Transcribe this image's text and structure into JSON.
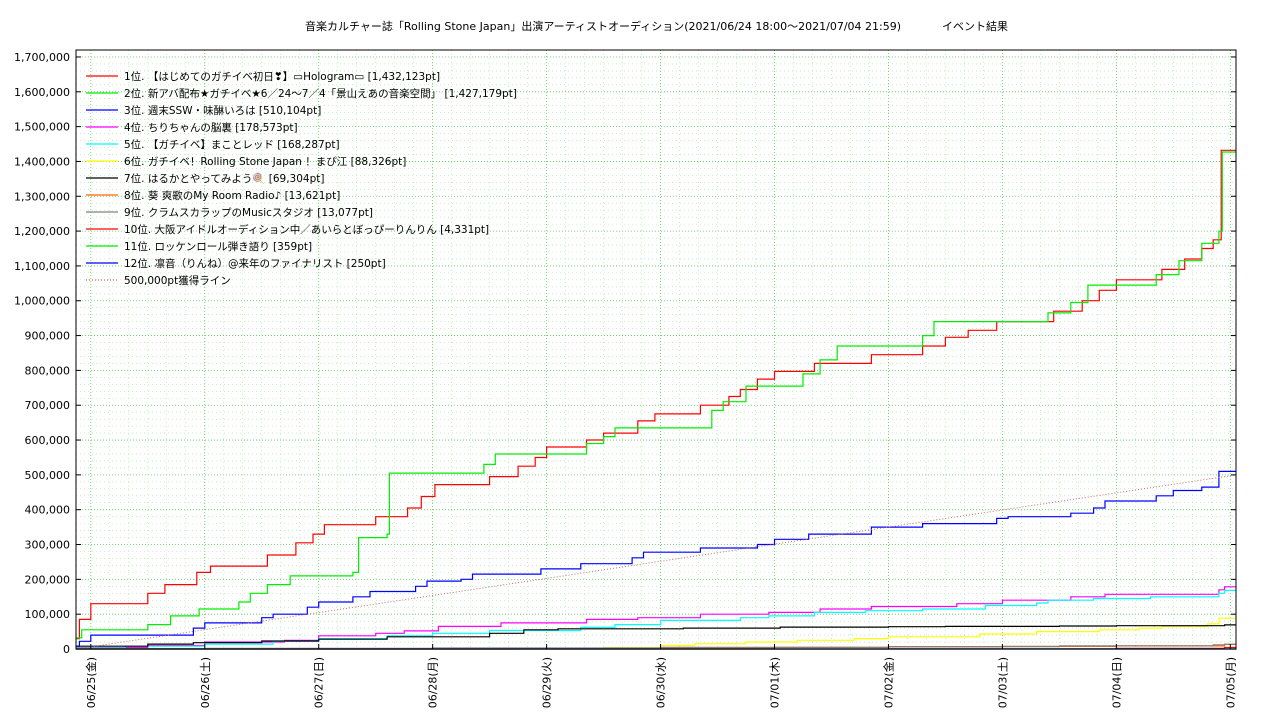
{
  "chart_data": {
    "type": "line",
    "title": "音楽カルチャー誌「Rolling Stone Japan」出演アーティストオーディション(2021/06/24 18:00〜2021/07/04 21:59)",
    "subtitle": "イベント結果",
    "y_ticks": [
      "0",
      "100,000",
      "200,000",
      "300,000",
      "400,000",
      "500,000",
      "600,000",
      "700,000",
      "800,000",
      "900,000",
      "1,000,000",
      "1,100,000",
      "1,200,000",
      "1,300,000",
      "1,400,000",
      "1,500,000",
      "1,600,000",
      "1,700,000"
    ],
    "ylim": [
      0,
      1720000
    ],
    "x_ticks": [
      "06/25(金)",
      "06/26(土)",
      "06/27(日)",
      "06/28(月)",
      "06/29(火)",
      "06/30(水)",
      "07/01(木)",
      "07/02(金)",
      "07/03(土)",
      "07/04(日)",
      "07/05(月)"
    ],
    "xlim": [
      -0.13,
      10.05
    ],
    "grid": true,
    "legend_placement": "top-left",
    "series": [
      {
        "name": "1位. 【はじめてのガチイベ初日❣】▭Hologram▭ [1,432,123pt]",
        "color": "#ff0000",
        "points": [
          [
            -0.13,
            30000
          ],
          [
            -0.1,
            85000
          ],
          [
            0.0,
            130000
          ],
          [
            0.5,
            160000
          ],
          [
            0.65,
            185000
          ],
          [
            0.93,
            220000
          ],
          [
            1.05,
            238000
          ],
          [
            1.55,
            270000
          ],
          [
            1.8,
            305000
          ],
          [
            1.95,
            330000
          ],
          [
            2.05,
            357000
          ],
          [
            2.5,
            380000
          ],
          [
            2.78,
            405000
          ],
          [
            2.9,
            438000
          ],
          [
            3.02,
            472000
          ],
          [
            3.5,
            495000
          ],
          [
            3.75,
            525000
          ],
          [
            3.9,
            550000
          ],
          [
            4.0,
            580000
          ],
          [
            4.35,
            600000
          ],
          [
            4.5,
            620000
          ],
          [
            4.8,
            655000
          ],
          [
            4.95,
            675000
          ],
          [
            5.35,
            700000
          ],
          [
            5.6,
            725000
          ],
          [
            5.7,
            745000
          ],
          [
            5.85,
            775000
          ],
          [
            6.0,
            797000
          ],
          [
            6.35,
            820000
          ],
          [
            6.85,
            845000
          ],
          [
            7.3,
            870000
          ],
          [
            7.5,
            895000
          ],
          [
            7.7,
            915000
          ],
          [
            7.95,
            940000
          ],
          [
            8.45,
            970000
          ],
          [
            8.7,
            1000000
          ],
          [
            8.85,
            1030000
          ],
          [
            9.0,
            1060000
          ],
          [
            9.4,
            1090000
          ],
          [
            9.6,
            1120000
          ],
          [
            9.75,
            1150000
          ],
          [
            9.85,
            1175000
          ],
          [
            9.92,
            1432123
          ],
          [
            10.05,
            1432123
          ]
        ]
      },
      {
        "name": "2位. 新アバ配布★ガチイベ★6／24〜7／4「景山えあの音楽空間」 [1,427,179pt]",
        "color": "#00ee00",
        "points": [
          [
            -0.13,
            32000
          ],
          [
            -0.08,
            55000
          ],
          [
            0.5,
            70000
          ],
          [
            0.7,
            95000
          ],
          [
            0.95,
            115000
          ],
          [
            1.3,
            135000
          ],
          [
            1.4,
            160000
          ],
          [
            1.55,
            185000
          ],
          [
            1.75,
            210000
          ],
          [
            2.3,
            220000
          ],
          [
            2.35,
            320000
          ],
          [
            2.6,
            330000
          ],
          [
            2.62,
            505000
          ],
          [
            3.45,
            530000
          ],
          [
            3.55,
            560000
          ],
          [
            4.35,
            590000
          ],
          [
            4.5,
            610000
          ],
          [
            4.6,
            635000
          ],
          [
            5.45,
            685000
          ],
          [
            5.55,
            710000
          ],
          [
            5.75,
            755000
          ],
          [
            6.25,
            790000
          ],
          [
            6.4,
            830000
          ],
          [
            6.55,
            870000
          ],
          [
            7.3,
            900000
          ],
          [
            7.4,
            940000
          ],
          [
            8.4,
            965000
          ],
          [
            8.6,
            995000
          ],
          [
            8.75,
            1045000
          ],
          [
            9.35,
            1075000
          ],
          [
            9.55,
            1115000
          ],
          [
            9.75,
            1165000
          ],
          [
            9.9,
            1200000
          ],
          [
            9.93,
            1427179
          ],
          [
            10.05,
            1427179
          ]
        ]
      },
      {
        "name": "3位. 週末SSW・味醂いろは [510,104pt]",
        "color": "#0000ff",
        "points": [
          [
            -0.13,
            8000
          ],
          [
            -0.1,
            22000
          ],
          [
            0.0,
            40000
          ],
          [
            0.9,
            60000
          ],
          [
            1.0,
            75000
          ],
          [
            1.5,
            90000
          ],
          [
            1.6,
            100000
          ],
          [
            1.9,
            120000
          ],
          [
            2.0,
            135000
          ],
          [
            2.3,
            150000
          ],
          [
            2.45,
            165000
          ],
          [
            2.85,
            180000
          ],
          [
            2.95,
            195000
          ],
          [
            3.25,
            200000
          ],
          [
            3.35,
            215000
          ],
          [
            3.95,
            230000
          ],
          [
            4.3,
            245000
          ],
          [
            4.75,
            262000
          ],
          [
            4.85,
            278000
          ],
          [
            5.35,
            290000
          ],
          [
            5.85,
            300000
          ],
          [
            6.0,
            315000
          ],
          [
            6.3,
            330000
          ],
          [
            6.85,
            350000
          ],
          [
            7.3,
            360000
          ],
          [
            7.95,
            375000
          ],
          [
            8.05,
            380000
          ],
          [
            8.6,
            390000
          ],
          [
            8.8,
            405000
          ],
          [
            8.9,
            425000
          ],
          [
            9.35,
            440000
          ],
          [
            9.5,
            455000
          ],
          [
            9.75,
            465000
          ],
          [
            9.9,
            510104
          ],
          [
            10.05,
            510104
          ]
        ]
      },
      {
        "name": "4位. ちりちゃんの脳裏 [178,573pt]",
        "color": "#ff00ff",
        "points": [
          [
            -0.13,
            4000
          ],
          [
            0.5,
            10000
          ],
          [
            1.0,
            20000
          ],
          [
            1.7,
            25000
          ],
          [
            2.0,
            38000
          ],
          [
            2.5,
            45000
          ],
          [
            2.75,
            52000
          ],
          [
            3.05,
            65000
          ],
          [
            3.6,
            75000
          ],
          [
            4.35,
            85000
          ],
          [
            4.8,
            90000
          ],
          [
            5.35,
            100000
          ],
          [
            5.95,
            105000
          ],
          [
            6.4,
            115000
          ],
          [
            6.85,
            122000
          ],
          [
            7.6,
            130000
          ],
          [
            8.0,
            140000
          ],
          [
            8.6,
            150000
          ],
          [
            8.9,
            157000
          ],
          [
            9.9,
            170000
          ],
          [
            9.95,
            178573
          ],
          [
            10.05,
            178573
          ]
        ]
      },
      {
        "name": "5位. 【ガチイベ】まことレッド [168,287pt]",
        "color": "#00ffff",
        "points": [
          [
            -0.13,
            3000
          ],
          [
            0.3,
            8000
          ],
          [
            1.0,
            14000
          ],
          [
            1.6,
            22000
          ],
          [
            2.0,
            30000
          ],
          [
            2.6,
            38000
          ],
          [
            3.0,
            45000
          ],
          [
            3.5,
            53000
          ],
          [
            4.3,
            62000
          ],
          [
            4.6,
            70000
          ],
          [
            5.0,
            82000
          ],
          [
            5.7,
            90000
          ],
          [
            5.95,
            95000
          ],
          [
            6.35,
            105000
          ],
          [
            6.8,
            110000
          ],
          [
            7.3,
            115000
          ],
          [
            7.85,
            125000
          ],
          [
            8.3,
            132000
          ],
          [
            8.4,
            140000
          ],
          [
            8.8,
            145000
          ],
          [
            9.3,
            150000
          ],
          [
            9.9,
            160000
          ],
          [
            9.95,
            168287
          ],
          [
            10.05,
            168287
          ]
        ]
      },
      {
        "name": "6位. ガチイベ！Rolling Stone Japan ！まぴ江 [88,326pt]",
        "color": "#ffff00",
        "points": [
          [
            -0.13,
            500
          ],
          [
            3.6,
            1500
          ],
          [
            4.5,
            4000
          ],
          [
            5.0,
            10000
          ],
          [
            5.3,
            15000
          ],
          [
            5.75,
            20000
          ],
          [
            6.2,
            25000
          ],
          [
            6.7,
            30000
          ],
          [
            7.0,
            35000
          ],
          [
            7.8,
            43000
          ],
          [
            8.3,
            50000
          ],
          [
            8.85,
            55000
          ],
          [
            9.2,
            60000
          ],
          [
            9.4,
            65000
          ],
          [
            9.8,
            72000
          ],
          [
            9.9,
            88326
          ],
          [
            10.05,
            88326
          ]
        ]
      },
      {
        "name": "7位. はるかとやってみよう🍭 [69,304pt]",
        "color": "#000000",
        "points": [
          [
            -0.13,
            8000
          ],
          [
            0.5,
            14000
          ],
          [
            0.9,
            18000
          ],
          [
            1.5,
            23000
          ],
          [
            2.0,
            28000
          ],
          [
            2.6,
            35000
          ],
          [
            3.5,
            45000
          ],
          [
            3.8,
            55000
          ],
          [
            4.1,
            58000
          ],
          [
            5.2,
            60000
          ],
          [
            6.05,
            63000
          ],
          [
            7.0,
            64000
          ],
          [
            7.5,
            65000
          ],
          [
            8.5,
            66000
          ],
          [
            9.0,
            67000
          ],
          [
            9.95,
            69304
          ],
          [
            10.05,
            69304
          ]
        ]
      },
      {
        "name": "8位. 葵 爽歌のMy Room Radio♪ [13,621pt]",
        "color": "#ff6600",
        "points": [
          [
            -0.13,
            0
          ],
          [
            3.5,
            0
          ],
          [
            3.75,
            2000
          ],
          [
            5.0,
            3000
          ],
          [
            6.0,
            4500
          ],
          [
            7.0,
            6000
          ],
          [
            8.0,
            7500
          ],
          [
            9.0,
            9000
          ],
          [
            9.95,
            13621
          ],
          [
            10.05,
            13621
          ]
        ]
      },
      {
        "name": "9位. クラムスカラップのMusicスタジオ [13,077pt]",
        "color": "#808080",
        "points": [
          [
            -0.13,
            1000
          ],
          [
            1.0,
            2000
          ],
          [
            3.0,
            3000
          ],
          [
            5.0,
            5000
          ],
          [
            7.0,
            7000
          ],
          [
            8.5,
            9000
          ],
          [
            9.85,
            12000
          ],
          [
            9.95,
            13077
          ],
          [
            10.05,
            13077
          ]
        ]
      },
      {
        "name": "10位. 大阪アイドルオーディション中／あいらとぼっぴーりんりん [4,331pt]",
        "color": "#ff0000",
        "points": [
          [
            -0.13,
            0
          ],
          [
            7.0,
            500
          ],
          [
            9.0,
            2000
          ],
          [
            9.95,
            4331
          ],
          [
            10.05,
            4331
          ]
        ]
      },
      {
        "name": "11位. ロッケンロール弾き語り [359pt]",
        "color": "#00ee00",
        "points": [
          [
            -0.13,
            0
          ],
          [
            10.05,
            359
          ]
        ]
      },
      {
        "name": "12位. 凛音（りんね）@来年のファイナリスト [250pt]",
        "color": "#0000ff",
        "points": [
          [
            -0.13,
            0
          ],
          [
            10.05,
            250
          ]
        ]
      },
      {
        "name": "500,000pt獲得ライン",
        "color": "#cc6666",
        "dotted": true,
        "points": [
          [
            -0.13,
            0
          ],
          [
            10.05,
            500000
          ]
        ]
      }
    ]
  }
}
